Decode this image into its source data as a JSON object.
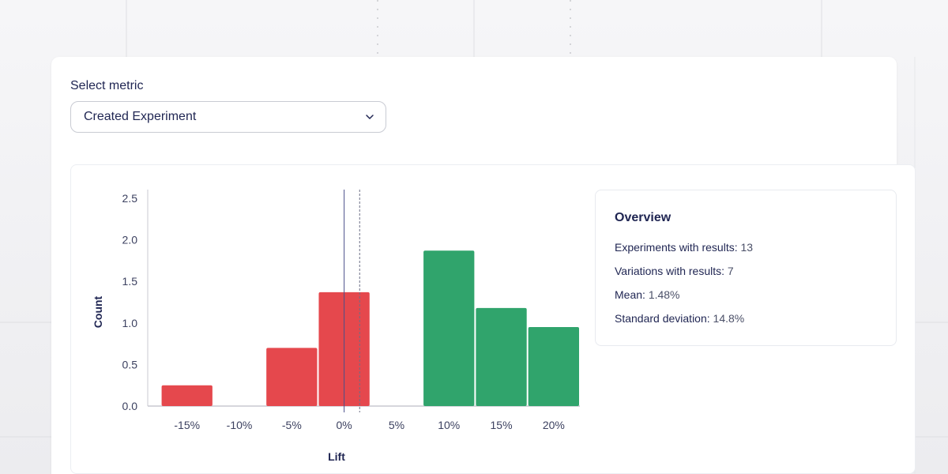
{
  "metric_select": {
    "label": "Select metric",
    "value": "Created Experiment"
  },
  "overview": {
    "title": "Overview",
    "rows": [
      {
        "label": "Experiments with results:",
        "value": "13"
      },
      {
        "label": "Variations with results:",
        "value": "7"
      },
      {
        "label": "Mean:",
        "value": "1.48%"
      },
      {
        "label": "Standard deviation:",
        "value": "14.8%"
      }
    ]
  },
  "colors": {
    "negative": "#e5484d",
    "positive": "#30a46c",
    "axis": "#c8c9d0",
    "mean_line": "#4a4f8a"
  },
  "chart_data": {
    "type": "bar",
    "title": "",
    "xlabel": "Lift",
    "ylabel": "Count",
    "ylim": [
      0,
      2.5
    ],
    "xlim": [
      -18.75,
      22.5
    ],
    "yticks": [
      "0.0",
      "0.5",
      "1.0",
      "1.5",
      "2.0",
      "2.5"
    ],
    "xticks": [
      {
        "value": -15,
        "label": "-15%"
      },
      {
        "value": -10,
        "label": "-10%"
      },
      {
        "value": -5,
        "label": "-5%"
      },
      {
        "value": 0,
        "label": "0%"
      },
      {
        "value": 5,
        "label": "5%"
      },
      {
        "value": 10,
        "label": "10%"
      },
      {
        "value": 15,
        "label": "15%"
      },
      {
        "value": 20,
        "label": "20%"
      }
    ],
    "bins": [
      {
        "from": -17.5,
        "to": -12.5,
        "count": 0.25,
        "sign": "negative"
      },
      {
        "from": -7.5,
        "to": -2.5,
        "count": 0.7,
        "sign": "negative"
      },
      {
        "from": -2.5,
        "to": 2.5,
        "count": 1.37,
        "sign": "negative"
      },
      {
        "from": 7.5,
        "to": 12.5,
        "count": 1.87,
        "sign": "positive"
      },
      {
        "from": 12.5,
        "to": 17.5,
        "count": 1.18,
        "sign": "positive"
      },
      {
        "from": 17.5,
        "to": 22.5,
        "count": 0.95,
        "sign": "positive"
      }
    ],
    "reference_lines": [
      {
        "value": 0,
        "style": "solid"
      },
      {
        "value": 1.48,
        "style": "dashed"
      }
    ]
  }
}
